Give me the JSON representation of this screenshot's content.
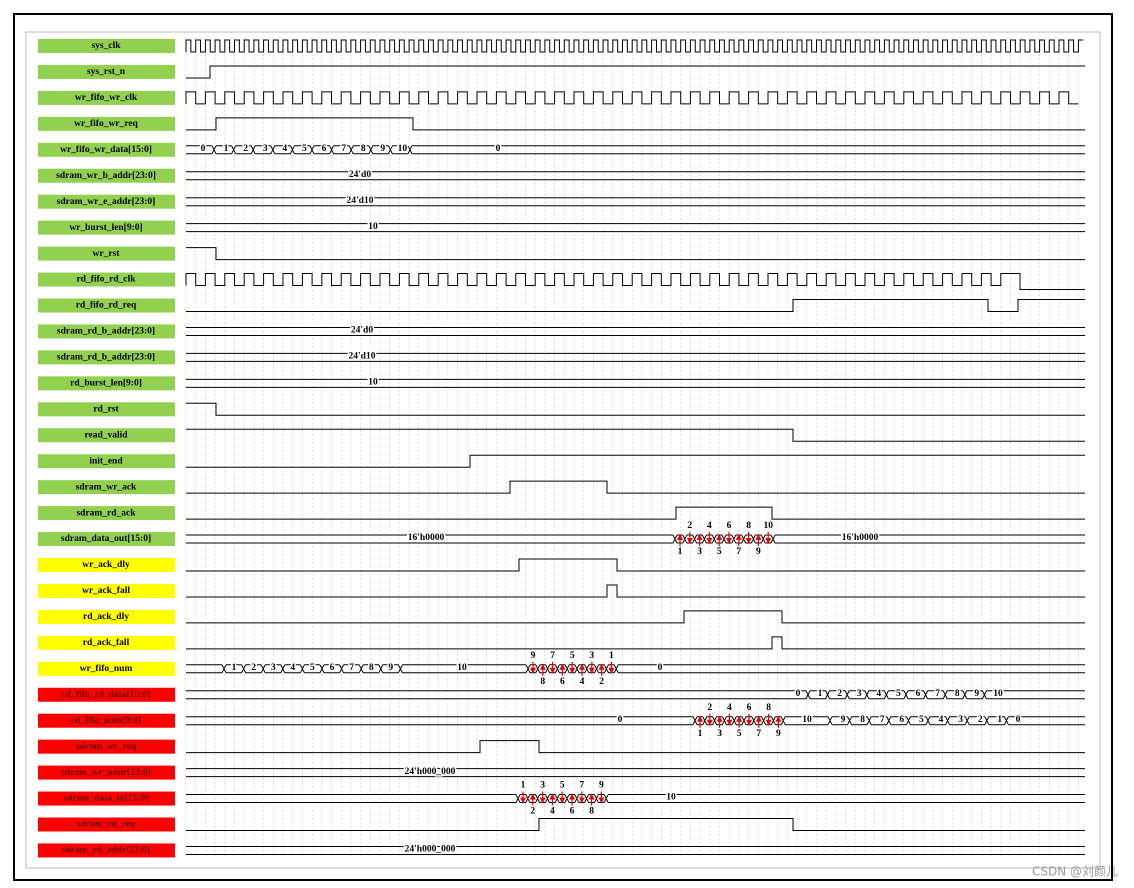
{
  "signals": [
    {
      "name": "sys_clk",
      "color": "#92d050",
      "values": []
    },
    {
      "name": "sys_rst_n",
      "color": "#92d050",
      "values": []
    },
    {
      "name": "wr_fifo_wr_clk",
      "color": "#92d050",
      "values": []
    },
    {
      "name": "wr_fifo_wr_req",
      "color": "#92d050",
      "values": []
    },
    {
      "name": "wr_fifo_wr_data[15:0]",
      "color": "#92d050",
      "values": [
        "0",
        "1",
        "2",
        "3",
        "4",
        "5",
        "6",
        "7",
        "8",
        "9",
        "10",
        "0"
      ]
    },
    {
      "name": "sdram_wr_b_addr[23:0]",
      "color": "#92d050",
      "values": [
        "24'd0"
      ]
    },
    {
      "name": "sdram_wr_e_addr[23:0]",
      "color": "#92d050",
      "values": [
        "24'd10"
      ]
    },
    {
      "name": "wr_burst_len[9:0]",
      "color": "#92d050",
      "values": [
        "10"
      ]
    },
    {
      "name": "wr_rst",
      "color": "#92d050",
      "values": []
    },
    {
      "name": "rd_fifo_rd_clk",
      "color": "#92d050",
      "values": []
    },
    {
      "name": "rd_fifo_rd_req",
      "color": "#92d050",
      "values": []
    },
    {
      "name": "sdram_rd_b_addr[23:0]",
      "color": "#92d050",
      "values": [
        "24'd0"
      ]
    },
    {
      "name": "sdram_rd_b_addr[23:0]",
      "color": "#92d050",
      "values": [
        "24'd10"
      ]
    },
    {
      "name": "rd_burst_len[9:0]",
      "color": "#92d050",
      "values": [
        "10"
      ]
    },
    {
      "name": "rd_rst",
      "color": "#92d050",
      "values": []
    },
    {
      "name": "read_valid",
      "color": "#92d050",
      "values": []
    },
    {
      "name": "init_end",
      "color": "#92d050",
      "values": []
    },
    {
      "name": "sdram_wr_ack",
      "color": "#92d050",
      "values": []
    },
    {
      "name": "sdram_rd_ack",
      "color": "#92d050",
      "values": []
    },
    {
      "name": "sdram_data_out[15:0]",
      "color": "#92d050",
      "values": [
        "16'h0000",
        "1",
        "2",
        "3",
        "4",
        "5",
        "6",
        "7",
        "8",
        "9",
        "10",
        "16'h0000"
      ]
    },
    {
      "name": "wr_ack_dly",
      "color": "#ffff00",
      "values": []
    },
    {
      "name": "wr_ack_fall",
      "color": "#ffff00",
      "values": []
    },
    {
      "name": "rd_ack_dly",
      "color": "#ffff00",
      "values": []
    },
    {
      "name": "rd_ack_fall",
      "color": "#ffff00",
      "values": []
    },
    {
      "name": "wr_fifo_num",
      "color": "#ffff00",
      "values": [
        "1",
        "2",
        "3",
        "4",
        "5",
        "6",
        "7",
        "8",
        "9",
        "10",
        "9",
        "8",
        "7",
        "6",
        "5",
        "4",
        "3",
        "2",
        "1",
        "0"
      ]
    },
    {
      "name": "rd_fifo_rd_data[15:0]",
      "color": "#ff0000",
      "values": [
        "0",
        "1",
        "2",
        "3",
        "4",
        "5",
        "6",
        "7",
        "8",
        "9",
        "10"
      ]
    },
    {
      "name": "rd_fifo_num[9:0]",
      "color": "#ff0000",
      "values": [
        "0",
        "1",
        "2",
        "3",
        "4",
        "5",
        "6",
        "7",
        "8",
        "9",
        "10",
        "9",
        "8",
        "7",
        "6",
        "5",
        "4",
        "3",
        "2",
        "1",
        "0"
      ]
    },
    {
      "name": "sdram_wr_req",
      "color": "#ff0000",
      "values": []
    },
    {
      "name": "sdram_wr_addr[23:0]",
      "color": "#ff0000",
      "values": [
        "24'h000_000"
      ]
    },
    {
      "name": "sdram_data_in[15:0]",
      "color": "#ff0000",
      "values": [
        "1",
        "2",
        "3",
        "4",
        "5",
        "6",
        "7",
        "8",
        "9",
        "10"
      ]
    },
    {
      "name": "sdram_rd_req",
      "color": "#ff0000",
      "values": []
    },
    {
      "name": "sdram_rd_addr[23:0]",
      "color": "#ff0000",
      "values": [
        "24'h000_000"
      ]
    }
  ],
  "watermark": "CSDN @刘颜儿"
}
